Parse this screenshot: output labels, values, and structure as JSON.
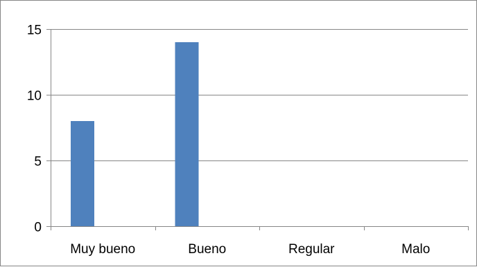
{
  "chart_data": {
    "type": "bar",
    "title": "",
    "xlabel": "",
    "ylabel": "",
    "categories": [
      "Muy bueno",
      "Bueno",
      "Regular",
      "Malo"
    ],
    "series": [
      {
        "values": [
          8,
          14,
          0,
          0
        ],
        "color": "#4f81bd"
      }
    ],
    "ylim": [
      0,
      15
    ],
    "yticks": [
      0,
      5,
      10,
      15
    ],
    "grid": true,
    "legend": "none",
    "colors": {
      "bar": "#4f81bd",
      "gridline": "#868686",
      "axis": "#868686",
      "text": "#000000"
    }
  }
}
